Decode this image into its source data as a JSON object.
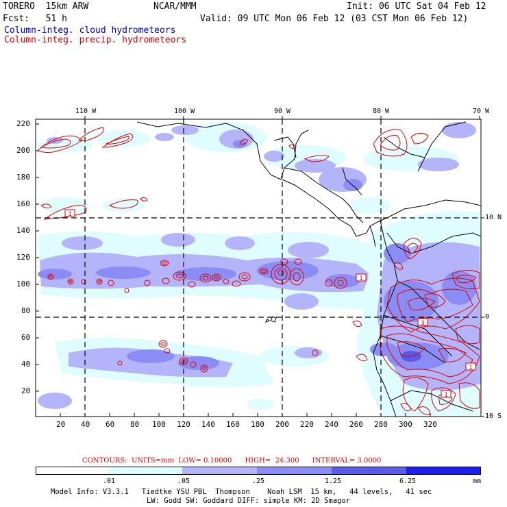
{
  "header": {
    "model": "TORERO  15km ARW",
    "org": "NCAR/MMM",
    "init": "Init: 06 UTC Sat 04 Feb 12",
    "fcst": "Fcst:   51 h",
    "valid": "Valid: 09 UTC Mon 06 Feb 12 (03 CST Mon 06 Feb 12)",
    "field_cloud": "Column-integ. cloud hydrometeors",
    "field_precip": "Column-integ. precip. hydrometeors"
  },
  "map": {
    "lon_labels": [
      "110 W",
      "100 W",
      "90 W",
      "80 W",
      "70 W"
    ],
    "lat_labels": [
      "10 N",
      "0",
      "10 S"
    ],
    "y_ticks": [
      "220",
      "200",
      "180",
      "160",
      "140",
      "120",
      "100",
      "80",
      "60",
      "40",
      "20"
    ],
    "x_ticks": [
      "20",
      "40",
      "60",
      "80",
      "100",
      "120",
      "140",
      "160",
      "180",
      "200",
      "220",
      "240",
      "260",
      "280",
      "300",
      "320"
    ],
    "contour_labels": [
      "1",
      "1",
      "1",
      "1",
      "3"
    ]
  },
  "contours": {
    "text": "CONTOURS:  UNITS=mm  LOW= 0.10000      HIGH=  24.300      INTERVAL= 3.0000"
  },
  "colorbar": {
    "labels": [
      ".01",
      ".05",
      ".25",
      "1.25",
      "6.25"
    ],
    "units": "mm",
    "colors": [
      "#ffffff",
      "#dffcff",
      "#b4b4fa",
      "#8c8cf5",
      "#5a5ae6",
      "#1e1ef0"
    ]
  },
  "footer": {
    "line1": "Model Info: V3.3.1   Tiedtke YSU PBL  Thompson    Noah LSM  15 km,   44 levels,   41 sec",
    "line2": "LW: Godd SW: Goddard DIFF: simple KM: 2D Smagor"
  },
  "colors": {
    "cloud_label": "#0000cc",
    "precip_label": "#dd0000",
    "contour_line": "#dd0000",
    "cloud_light": "#dffcff",
    "cloud_mid": "#b4b4fa",
    "cloud_dark": "#8c8cf5"
  }
}
